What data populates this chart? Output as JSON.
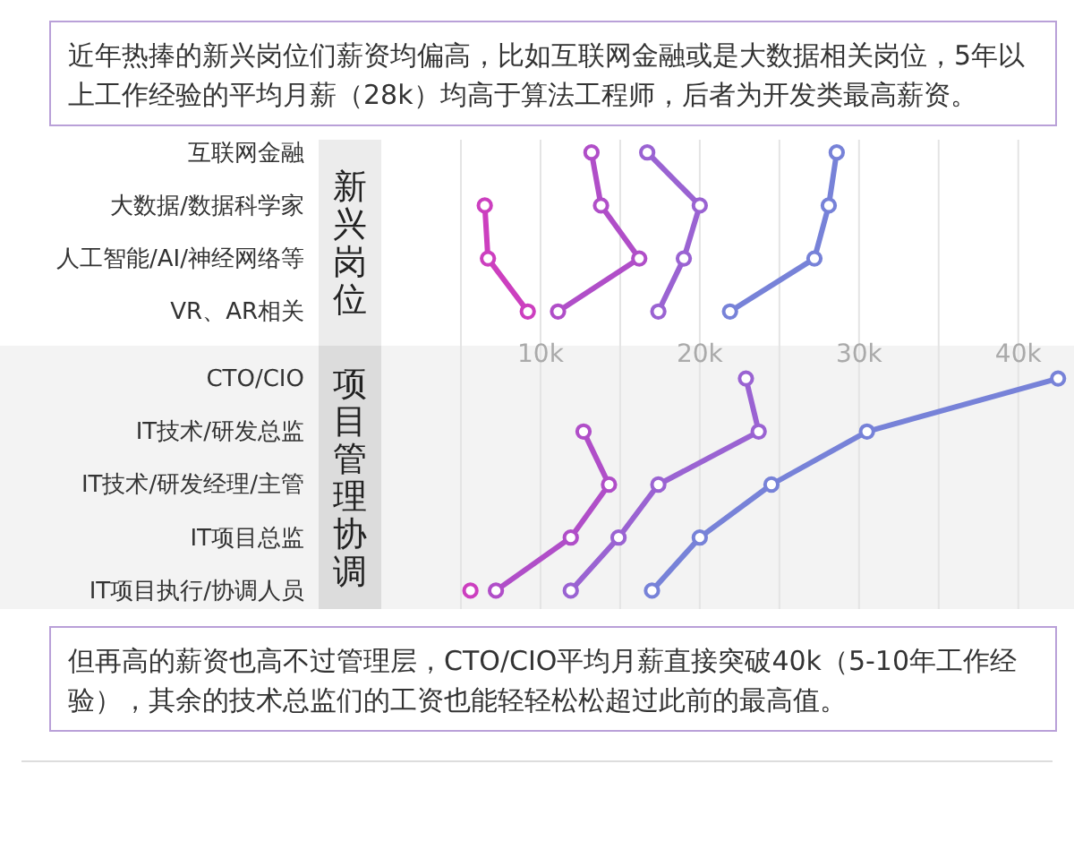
{
  "chart_data": [
    {
      "type": "line",
      "orientation": "horizontal",
      "title": "近年热捧的新兴岗位们薪资均偏高，比如互联网金融或是大数据相关岗位，5年以上工作经验的平均月薪（28k）均高于算法工程师，后者为开发类最高薪资。",
      "ylabel": "新兴岗位",
      "categories": [
        "互联网金融",
        "大数据/数据科学家",
        "人工智能/AI/神经网络等",
        "VR、AR相关"
      ],
      "series": [
        {
          "color": "#cc3fbf",
          "values": [
            null,
            6.5,
            6.7,
            9.2
          ]
        },
        {
          "color": "#b04ec8",
          "values": [
            13.2,
            13.8,
            16.2,
            11.1
          ]
        },
        {
          "color": "#9a63d2",
          "values": [
            16.7,
            20.0,
            19.0,
            17.4
          ]
        },
        {
          "color": "#7782d8",
          "values": [
            28.6,
            28.1,
            27.2,
            21.9
          ]
        }
      ],
      "xlim": [
        0,
        43.5
      ],
      "xticks": [
        {
          "value": 5,
          "label": null
        },
        {
          "value": 10,
          "label": null
        },
        {
          "value": 15,
          "label": null
        },
        {
          "value": 20,
          "label": null
        },
        {
          "value": 25,
          "label": null
        },
        {
          "value": 30,
          "label": null
        },
        {
          "value": 35,
          "label": null
        },
        {
          "value": 40,
          "label": null
        }
      ],
      "grid": "x",
      "marker": "circle",
      "tick_labels": "y"
    },
    {
      "type": "line",
      "orientation": "horizontal",
      "ylabel": "项目管理协调",
      "annotations": [
        "但再高的薪资也高不过管理层，CTO/CIO平均月薪直接突破40k（5-10年工作经验），其余的技术总监们的工资也能轻轻松松超过此前的最高值。"
      ],
      "categories": [
        "CTO/CIO",
        "IT技术/研发总监",
        "IT技术/研发经理/主管",
        "IT项目总监",
        "IT项目执行/协调人员"
      ],
      "series": [
        {
          "color": "#cc3fbf",
          "values": [
            null,
            null,
            null,
            null,
            5.6
          ]
        },
        {
          "color": "#b04ec8",
          "values": [
            null,
            12.7,
            14.3,
            11.9,
            7.2
          ]
        },
        {
          "color": "#9a63d2",
          "values": [
            22.9,
            23.7,
            17.4,
            14.9,
            11.9
          ]
        },
        {
          "color": "#7782d8",
          "values": [
            42.5,
            30.5,
            24.5,
            20.0,
            17.0
          ]
        }
      ],
      "xlim": [
        0,
        43.5
      ],
      "xticks": [
        {
          "value": 5,
          "label": null
        },
        {
          "value": 10,
          "label": "10k"
        },
        {
          "value": 15,
          "label": null
        },
        {
          "value": 20,
          "label": "20k"
        },
        {
          "value": 25,
          "label": null
        },
        {
          "value": 30,
          "label": "30k"
        },
        {
          "value": 35,
          "label": null
        },
        {
          "value": 40,
          "label": "40k"
        }
      ],
      "grid": "x",
      "marker": "circle"
    }
  ]
}
